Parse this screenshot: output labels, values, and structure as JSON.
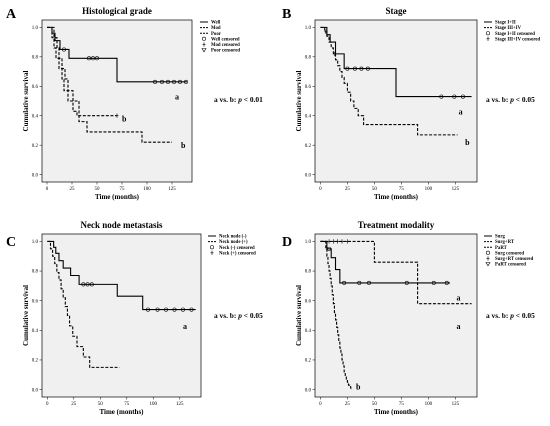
{
  "figure": {
    "background": "#ffffff",
    "plot_background": "#f0f0f0",
    "line_color": "#000000"
  },
  "chart_data": [
    {
      "type": "line",
      "panel_letter": "A",
      "title": "Histological grade",
      "xlabel": "Time (months)",
      "ylabel": "Cumulative survival",
      "xlim": [
        -5,
        145
      ],
      "ylim": [
        -0.05,
        1.05
      ],
      "xticks": [
        0,
        25,
        50,
        75,
        100,
        125
      ],
      "yticks": [
        0.0,
        0.2,
        0.4,
        0.6,
        0.8,
        1.0
      ],
      "tick_labels_x": [
        "0",
        "25",
        "50",
        "75",
        "100",
        "125"
      ],
      "tick_labels_y": [
        "0.0",
        "0.2",
        "0.4",
        "0.6",
        "0.8",
        "1.0"
      ],
      "legend_position": "top-right",
      "legend": [
        "Well",
        "Mod",
        "Poor",
        "Well censored",
        "Mod censored",
        "Poor censored"
      ],
      "series": [
        {
          "name": "Well",
          "style": "solid",
          "x": [
            0,
            3,
            5,
            8,
            13,
            22,
            70,
            140
          ],
          "y": [
            1.0,
            1.0,
            0.96,
            0.91,
            0.85,
            0.79,
            0.63,
            0.63
          ],
          "censored": [
            [
              17,
              0.85
            ],
            [
              42,
              0.79
            ],
            [
              46,
              0.79
            ],
            [
              50,
              0.79
            ],
            [
              108,
              0.63
            ],
            [
              115,
              0.63
            ],
            [
              121,
              0.63
            ],
            [
              127,
              0.63
            ],
            [
              133,
              0.63
            ],
            [
              139,
              0.63
            ]
          ]
        },
        {
          "name": "Mod",
          "style": "dashed",
          "x": [
            0,
            3,
            5,
            7,
            9,
            12,
            15,
            17,
            21,
            26,
            30,
            70
          ],
          "y": [
            1.0,
            1.0,
            0.93,
            0.86,
            0.79,
            0.72,
            0.65,
            0.57,
            0.5,
            0.43,
            0.4,
            0.4
          ],
          "censored": [
            [
              70,
              0.4
            ]
          ]
        },
        {
          "name": "Poor",
          "style": "dashed",
          "x": [
            0,
            4,
            7,
            10,
            12,
            15,
            18,
            21,
            26,
            32,
            40,
            95,
            125
          ],
          "y": [
            1.0,
            1.0,
            0.93,
            0.86,
            0.79,
            0.72,
            0.65,
            0.57,
            0.5,
            0.36,
            0.29,
            0.22,
            0.22
          ],
          "censored": []
        }
      ],
      "curve_labels": [
        {
          "text": "a",
          "x": 128,
          "y": 0.53
        },
        {
          "text": "b",
          "x": 75,
          "y": 0.38
        },
        {
          "text": "b",
          "x": 134,
          "y": 0.2
        }
      ],
      "annotation": "a vs. b: p < 0.01"
    },
    {
      "type": "line",
      "panel_letter": "B",
      "title": "Stage",
      "xlabel": "Time (months)",
      "ylabel": "Cumulative survival",
      "xlim": [
        -5,
        145
      ],
      "ylim": [
        -0.05,
        1.05
      ],
      "xticks": [
        0,
        25,
        50,
        75,
        100,
        125
      ],
      "yticks": [
        0.0,
        0.2,
        0.4,
        0.6,
        0.8,
        1.0
      ],
      "tick_labels_x": [
        "0",
        "25",
        "50",
        "75",
        "100",
        "125"
      ],
      "tick_labels_y": [
        "0.0",
        "0.2",
        "0.4",
        "0.6",
        "0.8",
        "1.0"
      ],
      "legend_position": "top-right",
      "legend": [
        "Stage I+II",
        "Stage III+IV",
        "Stage I+II censored",
        "Stage III+IV censored"
      ],
      "series": [
        {
          "name": "Stage I+II",
          "style": "solid",
          "x": [
            0,
            3,
            6,
            9,
            14,
            22,
            70,
            140
          ],
          "y": [
            1.0,
            1.0,
            0.95,
            0.9,
            0.82,
            0.72,
            0.53,
            0.53
          ],
          "censored": [
            [
              25,
              0.72
            ],
            [
              32,
              0.72
            ],
            [
              38,
              0.72
            ],
            [
              44,
              0.72
            ],
            [
              112,
              0.53
            ],
            [
              124,
              0.53
            ],
            [
              132,
              0.53
            ]
          ]
        },
        {
          "name": "Stage III+IV",
          "style": "dashed",
          "x": [
            0,
            2,
            4,
            6,
            8,
            10,
            12,
            14,
            16,
            18,
            20,
            22,
            25,
            28,
            31,
            35,
            40,
            90,
            127
          ],
          "y": [
            1.0,
            1.0,
            0.97,
            0.94,
            0.9,
            0.86,
            0.82,
            0.78,
            0.74,
            0.7,
            0.66,
            0.62,
            0.56,
            0.5,
            0.45,
            0.4,
            0.34,
            0.27,
            0.27
          ],
          "censored": [
            [
              5,
              0.97
            ],
            [
              13,
              0.82
            ]
          ]
        }
      ],
      "curve_labels": [
        {
          "text": "a",
          "x": 128,
          "y": 0.43
        },
        {
          "text": "b",
          "x": 134,
          "y": 0.22
        }
      ],
      "annotation": "a vs. b: p < 0.05"
    },
    {
      "type": "line",
      "panel_letter": "C",
      "title": "Neck node metastasis",
      "xlabel": "Time (months)",
      "ylabel": "Cumulative survival",
      "xlim": [
        -5,
        145
      ],
      "ylim": [
        -0.05,
        1.05
      ],
      "xticks": [
        0,
        25,
        50,
        75,
        100,
        125
      ],
      "yticks": [
        0.0,
        0.2,
        0.4,
        0.6,
        0.8,
        1.0
      ],
      "tick_labels_x": [
        "0",
        "25",
        "50",
        "75",
        "100",
        "125"
      ],
      "tick_labels_y": [
        "0.0",
        "0.2",
        "0.4",
        "0.6",
        "0.8",
        "1.0"
      ],
      "legend_position": "top-right",
      "legend": [
        "Neck node (-)",
        "Neck node (+)",
        "Neck (-) censored",
        "Neck (+) censored"
      ],
      "series": [
        {
          "name": "Neck node (-)",
          "style": "solid",
          "x": [
            0,
            3,
            6,
            8,
            11,
            15,
            22,
            30,
            66,
            90,
            140
          ],
          "y": [
            1.0,
            1.0,
            0.96,
            0.92,
            0.87,
            0.82,
            0.77,
            0.71,
            0.63,
            0.54,
            0.54
          ],
          "censored": [
            [
              34,
              0.71
            ],
            [
              38,
              0.71
            ],
            [
              42,
              0.71
            ],
            [
              95,
              0.54
            ],
            [
              104,
              0.54
            ],
            [
              112,
              0.54
            ],
            [
              120,
              0.54
            ],
            [
              128,
              0.54
            ],
            [
              136,
              0.54
            ]
          ]
        },
        {
          "name": "Neck node (+)",
          "style": "dashed",
          "x": [
            0,
            2,
            3,
            5,
            7,
            9,
            11,
            13,
            15,
            17,
            19,
            21,
            24,
            28,
            34,
            40,
            68
          ],
          "y": [
            1.0,
            1.0,
            0.95,
            0.9,
            0.85,
            0.79,
            0.74,
            0.68,
            0.62,
            0.56,
            0.5,
            0.43,
            0.36,
            0.29,
            0.22,
            0.15,
            0.15
          ],
          "censored": []
        }
      ],
      "curve_labels": [
        {
          "text": "a",
          "x": 128,
          "y": 0.43
        }
      ],
      "annotation": "a vs. b: p < 0.05"
    },
    {
      "type": "line",
      "panel_letter": "D",
      "title": "Treatment modality",
      "xlabel": "Time (months)",
      "ylabel": "Cumulative survival",
      "xlim": [
        -5,
        145
      ],
      "ylim": [
        -0.05,
        1.05
      ],
      "xticks": [
        0,
        25,
        50,
        75,
        100,
        125
      ],
      "yticks": [
        0.0,
        0.2,
        0.4,
        0.6,
        0.8,
        1.0
      ],
      "tick_labels_x": [
        "0",
        "25",
        "50",
        "75",
        "100",
        "125"
      ],
      "tick_labels_y": [
        "0.0",
        "0.2",
        "0.4",
        "0.6",
        "0.8",
        "1.0"
      ],
      "legend_position": "top-right",
      "legend": [
        "Surg",
        "Surg+RT",
        "PaRT",
        "Surg censored",
        "Surg+RT censored",
        "PaRT censored"
      ],
      "series": [
        {
          "name": "Surg",
          "style": "solid",
          "x": [
            0,
            3,
            6,
            10,
            14,
            18,
            120
          ],
          "y": [
            1.0,
            1.0,
            0.95,
            0.89,
            0.81,
            0.72,
            0.72
          ],
          "censored": [
            [
              8,
              0.95
            ],
            [
              22,
              0.72
            ],
            [
              36,
              0.72
            ],
            [
              45,
              0.72
            ],
            [
              80,
              0.72
            ],
            [
              105,
              0.72
            ],
            [
              117,
              0.72
            ]
          ]
        },
        {
          "name": "Surg+RT",
          "style": "dashed",
          "x": [
            0,
            33,
            50,
            90,
            140
          ],
          "y": [
            1.0,
            1.0,
            0.86,
            0.58,
            0.58
          ],
          "censored": [
            [
              8,
              1.0
            ],
            [
              12,
              1.0
            ],
            [
              16,
              1.0
            ],
            [
              20,
              1.0
            ],
            [
              25,
              1.0
            ]
          ]
        },
        {
          "name": "PaRT",
          "style": "dashed",
          "x": [
            0,
            3,
            5,
            6,
            7,
            8,
            9,
            10,
            11,
            12,
            13,
            14,
            15,
            16,
            17,
            18,
            19,
            20,
            21,
            22,
            23,
            24,
            25,
            26,
            27,
            28,
            29
          ],
          "y": [
            1.0,
            1.0,
            0.95,
            0.9,
            0.85,
            0.8,
            0.75,
            0.7,
            0.64,
            0.58,
            0.52,
            0.47,
            0.42,
            0.37,
            0.32,
            0.28,
            0.24,
            0.2,
            0.16,
            0.12,
            0.09,
            0.07,
            0.05,
            0.03,
            0.02,
            0.01,
            0.0
          ],
          "censored": []
        }
      ],
      "curve_labels": [
        {
          "text": "a",
          "x": 126,
          "y": 0.62
        },
        {
          "text": "a",
          "x": 126,
          "y": 0.43
        },
        {
          "text": "b",
          "x": 33,
          "y": 0.02
        }
      ],
      "annotation": "a vs. b: p < 0.05"
    }
  ]
}
